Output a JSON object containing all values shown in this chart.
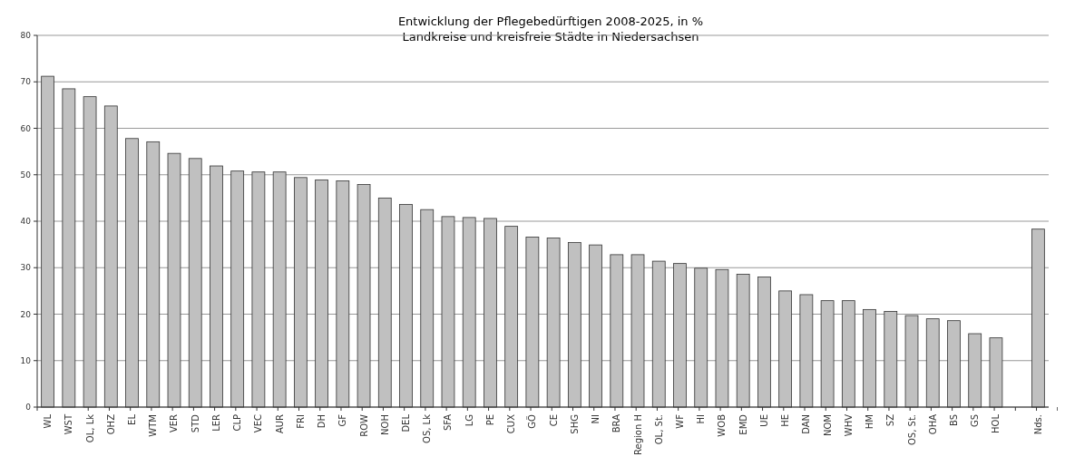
{
  "chart_data": {
    "type": "bar",
    "title": "Entwicklung der Pflegebedürftigen 2008-2025, in %",
    "subtitle": "Landkreise und kreisfreie Städte in Niedersachsen",
    "categories": [
      "WL",
      "WST",
      "OL, Lk",
      "OHZ",
      "EL",
      "WTM",
      "VER",
      "STD",
      "LER",
      "CLP",
      "VEC",
      "AUR",
      "FRI",
      "DH",
      "GF",
      "ROW",
      "NOH",
      "DEL",
      "OS, Lk",
      "SFA",
      "LG",
      "PE",
      "CUX",
      "GÖ",
      "CE",
      "SHG",
      "NI",
      "BRA",
      "Region H",
      "OL, St.",
      "WF",
      "HI",
      "WOB",
      "EMD",
      "UE",
      "HE",
      "DAN",
      "NOM",
      "WHV",
      "HM",
      "SZ",
      "OS, St.",
      "OHA",
      "BS",
      "GS",
      "HOL",
      null,
      "Nds."
    ],
    "values": [
      71.2,
      68.5,
      66.8,
      64.8,
      57.8,
      57.1,
      54.6,
      53.5,
      51.9,
      50.8,
      50.6,
      50.6,
      49.4,
      48.9,
      48.7,
      47.9,
      45.0,
      43.6,
      42.5,
      41.0,
      40.8,
      40.6,
      38.9,
      36.6,
      36.4,
      35.4,
      34.9,
      32.8,
      32.8,
      31.4,
      30.9,
      29.9,
      29.6,
      28.6,
      28.0,
      25.0,
      24.2,
      22.9,
      22.9,
      21.0,
      20.6,
      19.7,
      19.0,
      18.6,
      15.8,
      14.9,
      null,
      38.3
    ],
    "color": "#c0c0c0",
    "ylim": [
      0,
      80
    ],
    "yticks": [
      0,
      10,
      20,
      30,
      40,
      50,
      60,
      70,
      80
    ],
    "grid": "y"
  }
}
